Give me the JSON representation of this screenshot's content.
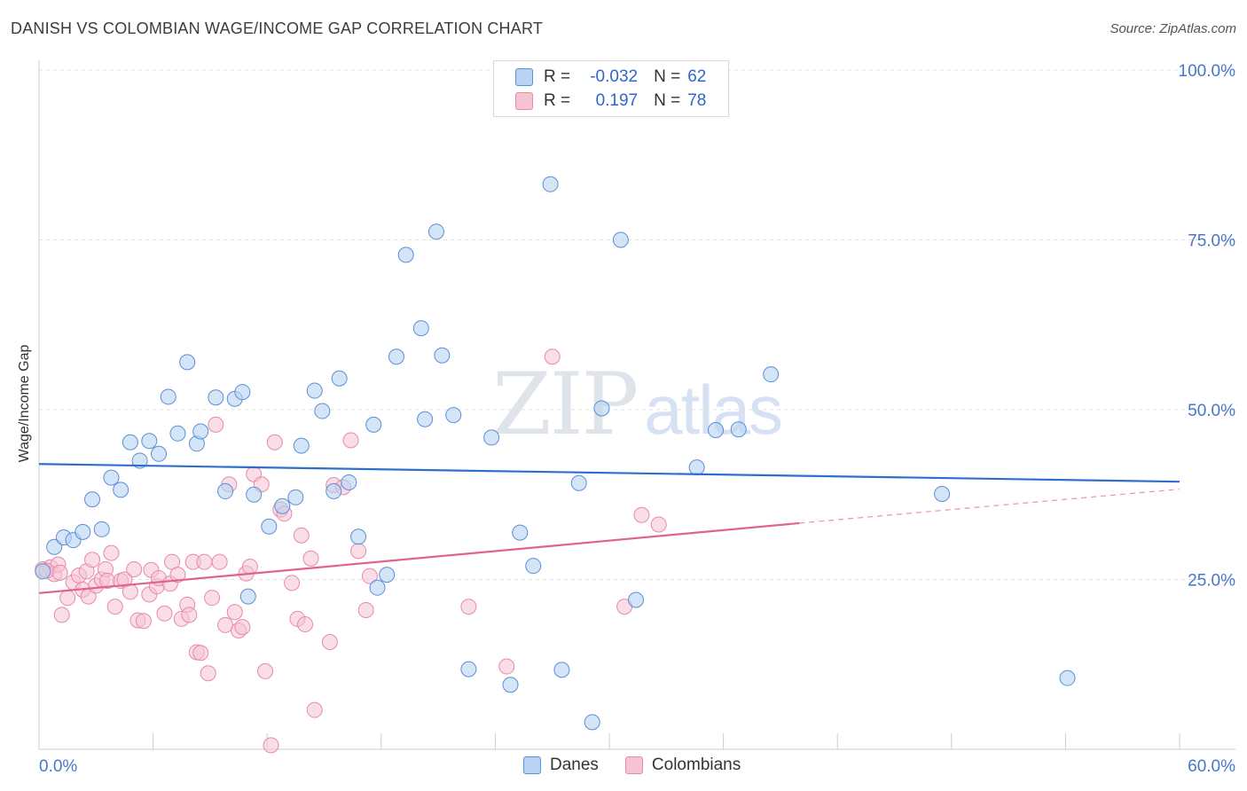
{
  "title": "DANISH VS COLOMBIAN WAGE/INCOME GAP CORRELATION CHART",
  "source": "Source: ZipAtlas.com",
  "watermark": {
    "zip": "ZIP",
    "atlas": "atlas"
  },
  "legend": {
    "r_label": "R =",
    "n_label": "N =",
    "danes": {
      "r": "-0.032",
      "n": "62"
    },
    "colombians": {
      "r": "0.197",
      "n": "78"
    }
  },
  "colors": {
    "danes_fill": "#b8d3f3",
    "danes_stroke": "#5b8fd6",
    "danes_line": "#2f6fcc",
    "col_fill": "#f6c3d3",
    "col_stroke": "#e889a8",
    "col_line": "#e0628e",
    "tick_label": "#4777c9"
  },
  "chart_data": {
    "type": "scatter",
    "title": "DANISH VS COLOMBIAN WAGE/INCOME GAP CORRELATION CHART",
    "xlabel": "",
    "ylabel": "Wage/Income Gap",
    "xlim": [
      0,
      60
    ],
    "ylim": [
      0,
      100
    ],
    "x_tick_labels": [
      "0.0%",
      "60.0%"
    ],
    "y_tick_values": [
      25,
      50,
      75,
      100
    ],
    "y_tick_labels": [
      "25.0%",
      "50.0%",
      "75.0%",
      "100.0%"
    ],
    "grid": true,
    "legend": [
      "Danes",
      "Colombians"
    ],
    "series": [
      {
        "name": "Danes",
        "r": -0.032,
        "n": 62,
        "trend": {
          "x": [
            0,
            60
          ],
          "y": [
            42.0,
            39.4
          ]
        },
        "points": [
          [
            0.2,
            26.2
          ],
          [
            0.8,
            29.8
          ],
          [
            1.3,
            31.2
          ],
          [
            1.8,
            30.8
          ],
          [
            2.3,
            32.0
          ],
          [
            2.8,
            36.8
          ],
          [
            3.3,
            32.4
          ],
          [
            3.8,
            40.0
          ],
          [
            4.3,
            38.2
          ],
          [
            4.8,
            45.2
          ],
          [
            5.3,
            42.5
          ],
          [
            5.8,
            45.4
          ],
          [
            6.3,
            43.5
          ],
          [
            6.8,
            51.9
          ],
          [
            7.3,
            46.5
          ],
          [
            7.8,
            57.0
          ],
          [
            8.3,
            45.0
          ],
          [
            8.5,
            46.8
          ],
          [
            9.3,
            51.8
          ],
          [
            9.8,
            38.0
          ],
          [
            10.3,
            51.6
          ],
          [
            10.7,
            52.6
          ],
          [
            11.0,
            22.5
          ],
          [
            11.3,
            37.5
          ],
          [
            12.1,
            32.8
          ],
          [
            12.8,
            35.8
          ],
          [
            13.5,
            37.1
          ],
          [
            13.8,
            44.7
          ],
          [
            14.5,
            52.8
          ],
          [
            14.9,
            49.8
          ],
          [
            15.5,
            38.0
          ],
          [
            15.8,
            54.6
          ],
          [
            16.3,
            39.3
          ],
          [
            16.8,
            31.3
          ],
          [
            17.6,
            47.8
          ],
          [
            17.8,
            23.8
          ],
          [
            18.3,
            25.7
          ],
          [
            18.8,
            57.8
          ],
          [
            19.3,
            72.8
          ],
          [
            20.1,
            62.0
          ],
          [
            20.3,
            48.6
          ],
          [
            20.9,
            76.2
          ],
          [
            21.2,
            58.0
          ],
          [
            21.8,
            49.2
          ],
          [
            22.6,
            11.8
          ],
          [
            23.8,
            45.9
          ],
          [
            24.8,
            9.5
          ],
          [
            25.3,
            31.9
          ],
          [
            26.0,
            27.0
          ],
          [
            26.9,
            83.2
          ],
          [
            27.5,
            11.7
          ],
          [
            28.4,
            39.2
          ],
          [
            29.1,
            4.0
          ],
          [
            29.6,
            50.2
          ],
          [
            30.6,
            75.0
          ],
          [
            31.4,
            22.0
          ],
          [
            34.6,
            41.5
          ],
          [
            35.6,
            47.0
          ],
          [
            36.8,
            47.1
          ],
          [
            38.5,
            55.2
          ],
          [
            47.5,
            37.6
          ],
          [
            54.1,
            10.5
          ]
        ]
      },
      {
        "name": "Colombians",
        "r": 0.197,
        "n": 78,
        "trend": {
          "x": [
            0,
            40
          ],
          "y": [
            23.0,
            33.3
          ]
        },
        "trend_extension": {
          "x": [
            40,
            60
          ],
          "y": [
            33.3,
            38.3
          ]
        },
        "points": [
          [
            0.2,
            26.5
          ],
          [
            0.6,
            26.8
          ],
          [
            0.8,
            25.8
          ],
          [
            1.0,
            27.2
          ],
          [
            1.2,
            19.8
          ],
          [
            1.5,
            22.3
          ],
          [
            1.8,
            24.6
          ],
          [
            2.1,
            25.6
          ],
          [
            2.3,
            23.5
          ],
          [
            2.5,
            26.2
          ],
          [
            2.6,
            22.5
          ],
          [
            2.8,
            27.9
          ],
          [
            3.0,
            24.1
          ],
          [
            3.3,
            25.0
          ],
          [
            3.5,
            26.5
          ],
          [
            3.6,
            24.8
          ],
          [
            3.8,
            28.9
          ],
          [
            4.0,
            21.0
          ],
          [
            4.3,
            24.8
          ],
          [
            4.5,
            25.0
          ],
          [
            4.8,
            23.2
          ],
          [
            5.0,
            26.5
          ],
          [
            5.2,
            19.0
          ],
          [
            5.5,
            18.9
          ],
          [
            5.8,
            22.8
          ],
          [
            5.9,
            26.4
          ],
          [
            6.2,
            24.0
          ],
          [
            6.3,
            25.2
          ],
          [
            6.6,
            20.0
          ],
          [
            6.9,
            24.4
          ],
          [
            7.0,
            27.6
          ],
          [
            7.3,
            25.7
          ],
          [
            7.5,
            19.2
          ],
          [
            7.8,
            21.3
          ],
          [
            7.9,
            19.8
          ],
          [
            8.1,
            27.6
          ],
          [
            8.3,
            14.3
          ],
          [
            8.5,
            14.2
          ],
          [
            8.7,
            27.6
          ],
          [
            8.9,
            11.2
          ],
          [
            9.1,
            22.3
          ],
          [
            9.3,
            47.8
          ],
          [
            9.5,
            27.6
          ],
          [
            9.8,
            18.3
          ],
          [
            10.0,
            39.0
          ],
          [
            10.3,
            20.2
          ],
          [
            10.5,
            17.5
          ],
          [
            10.7,
            18.0
          ],
          [
            10.9,
            25.9
          ],
          [
            11.1,
            26.9
          ],
          [
            11.3,
            40.5
          ],
          [
            11.7,
            39.0
          ],
          [
            11.9,
            11.5
          ],
          [
            12.2,
            0.6
          ],
          [
            12.4,
            45.2
          ],
          [
            12.7,
            35.3
          ],
          [
            12.9,
            34.7
          ],
          [
            13.3,
            24.5
          ],
          [
            13.6,
            19.2
          ],
          [
            13.8,
            31.5
          ],
          [
            14.0,
            18.4
          ],
          [
            14.3,
            28.1
          ],
          [
            14.5,
            5.8
          ],
          [
            15.3,
            15.8
          ],
          [
            15.5,
            38.9
          ],
          [
            16.0,
            38.6
          ],
          [
            16.4,
            45.5
          ],
          [
            16.8,
            29.2
          ],
          [
            17.2,
            20.5
          ],
          [
            17.4,
            25.5
          ],
          [
            27.0,
            57.8
          ],
          [
            22.6,
            21.0
          ],
          [
            24.6,
            12.2
          ],
          [
            30.8,
            21.0
          ],
          [
            31.7,
            34.5
          ],
          [
            32.6,
            33.1
          ],
          [
            0.4,
            26.3
          ],
          [
            1.1,
            26.0
          ]
        ]
      }
    ]
  }
}
